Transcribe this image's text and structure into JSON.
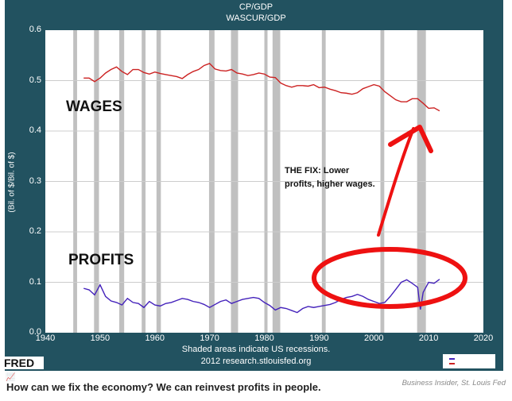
{
  "chart_data": {
    "type": "line",
    "title": "CP/GDP",
    "subtitle": "WASCUR/GDP",
    "xlabel": "",
    "ylabel": "(Bil. of $/Bil. of $)",
    "xlim": [
      1940,
      2020
    ],
    "ylim": [
      0.0,
      0.6
    ],
    "x_ticks": [
      "1940",
      "1950",
      "1960",
      "1970",
      "1980",
      "1990",
      "2000",
      "2010",
      "2020"
    ],
    "y_ticks": [
      "0.0",
      "0.1",
      "0.2",
      "0.3",
      "0.4",
      "0.5",
      "0.6"
    ],
    "grid": true,
    "legend_position": "bottom-right",
    "recessions": [
      [
        1945.1,
        1945.8
      ],
      [
        1948.9,
        1949.8
      ],
      [
        1953.5,
        1954.4
      ],
      [
        1957.6,
        1958.3
      ],
      [
        1960.3,
        1961.1
      ],
      [
        1969.9,
        1970.9
      ],
      [
        1973.9,
        1975.2
      ],
      [
        1980.0,
        1980.5
      ],
      [
        1981.5,
        1982.9
      ],
      [
        1990.5,
        1991.2
      ],
      [
        2001.2,
        2001.9
      ],
      [
        2007.9,
        2009.5
      ]
    ],
    "series": [
      {
        "name": "WASCUR/GDP (Wages)",
        "color": "#cc2222",
        "x": [
          1947,
          1948,
          1949,
          1950,
          1951,
          1952,
          1953,
          1954,
          1955,
          1956,
          1957,
          1958,
          1959,
          1960,
          1961,
          1962,
          1963,
          1964,
          1965,
          1966,
          1967,
          1968,
          1969,
          1970,
          1971,
          1972,
          1973,
          1974,
          1975,
          1976,
          1977,
          1978,
          1979,
          1980,
          1981,
          1982,
          1983,
          1984,
          1985,
          1986,
          1987,
          1988,
          1989,
          1990,
          1991,
          1992,
          1993,
          1994,
          1995,
          1996,
          1997,
          1998,
          1999,
          2000,
          2001,
          2002,
          2003,
          2004,
          2005,
          2006,
          2007,
          2008,
          2009,
          2010,
          2011,
          2012
        ],
        "values": [
          0.505,
          0.505,
          0.498,
          0.505,
          0.515,
          0.522,
          0.527,
          0.518,
          0.512,
          0.522,
          0.522,
          0.516,
          0.513,
          0.517,
          0.514,
          0.512,
          0.51,
          0.508,
          0.504,
          0.512,
          0.518,
          0.522,
          0.53,
          0.534,
          0.523,
          0.52,
          0.519,
          0.522,
          0.515,
          0.513,
          0.51,
          0.512,
          0.515,
          0.513,
          0.507,
          0.506,
          0.495,
          0.49,
          0.487,
          0.49,
          0.49,
          0.489,
          0.492,
          0.486,
          0.487,
          0.483,
          0.48,
          0.476,
          0.475,
          0.473,
          0.476,
          0.484,
          0.488,
          0.492,
          0.489,
          0.478,
          0.47,
          0.462,
          0.458,
          0.458,
          0.464,
          0.464,
          0.455,
          0.445,
          0.446,
          0.44
        ]
      },
      {
        "name": "CP/GDP (Profits)",
        "color": "#4422bb",
        "x": [
          1947,
          1948,
          1949,
          1950,
          1951,
          1952,
          1953,
          1954,
          1955,
          1956,
          1957,
          1958,
          1959,
          1960,
          1961,
          1962,
          1963,
          1964,
          1965,
          1966,
          1967,
          1968,
          1969,
          1970,
          1971,
          1972,
          1973,
          1974,
          1975,
          1976,
          1977,
          1978,
          1979,
          1980,
          1981,
          1982,
          1983,
          1984,
          1985,
          1986,
          1987,
          1988,
          1989,
          1990,
          1991,
          1992,
          1993,
          1994,
          1995,
          1996,
          1997,
          1998,
          1999,
          2000,
          2001,
          2002,
          2003,
          2004,
          2005,
          2006,
          2007,
          2008,
          2008.5,
          2009,
          2010,
          2011,
          2012
        ],
        "values": [
          0.088,
          0.085,
          0.075,
          0.095,
          0.072,
          0.063,
          0.06,
          0.055,
          0.068,
          0.06,
          0.058,
          0.05,
          0.062,
          0.055,
          0.053,
          0.058,
          0.06,
          0.064,
          0.068,
          0.066,
          0.062,
          0.06,
          0.056,
          0.05,
          0.056,
          0.062,
          0.065,
          0.058,
          0.062,
          0.066,
          0.068,
          0.07,
          0.068,
          0.06,
          0.054,
          0.045,
          0.05,
          0.048,
          0.044,
          0.04,
          0.048,
          0.052,
          0.05,
          0.052,
          0.054,
          0.056,
          0.06,
          0.066,
          0.07,
          0.072,
          0.076,
          0.072,
          0.066,
          0.062,
          0.058,
          0.06,
          0.072,
          0.086,
          0.1,
          0.105,
          0.098,
          0.09,
          0.046,
          0.08,
          0.1,
          0.098,
          0.106
        ]
      }
    ],
    "annotations": [
      {
        "text": "WAGES",
        "x": 1951,
        "y": 0.43
      },
      {
        "text": "PROFITS",
        "x": 1951,
        "y": 0.135
      },
      {
        "text": "THE FIX: Lower profits, higher wages.",
        "x": 1985.5,
        "y": 0.31
      }
    ]
  },
  "chart": {
    "title": "CP/GDP",
    "subtitle": "WASCUR/GDP",
    "ylabel": "(Bil. of $/Bil. of $)",
    "note_line1": "Shaded areas indicate US recessions.",
    "note_line2": "2012 research.stlouisfed.org",
    "logo": "FRED",
    "wages_label": "WAGES",
    "profits_label": "PROFITS",
    "fix_line1": "THE FIX: Lower",
    "fix_line2": "profits, higher wages.",
    "colors": {
      "frame": "#225260",
      "wages": "#cc2222",
      "profits": "#4422bb",
      "recession": "#c0c0c0",
      "marker": "#ee1111"
    }
  },
  "caption": "How can we fix the economy? We can reinvest profits in people.",
  "source": "Business Insider, St. Louis Fed"
}
